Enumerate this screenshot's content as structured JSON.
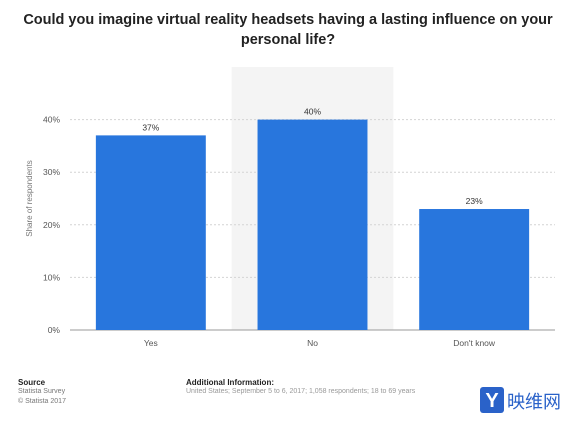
{
  "title": "Could you imagine virtual reality headsets having a lasting influence on your personal life?",
  "chart_data": {
    "type": "bar",
    "categories": [
      "Yes",
      "No",
      "Don't know"
    ],
    "values": [
      37,
      40,
      23
    ],
    "value_labels": [
      "37%",
      "40%",
      "23%"
    ],
    "ylabel": "Share of respondents",
    "ylim": [
      0,
      50
    ],
    "yticks": [
      0,
      10,
      20,
      30,
      40
    ],
    "ytick_labels": [
      "0%",
      "10%",
      "20%",
      "30%",
      "40%"
    ],
    "highlighted_category": "No",
    "grid": true,
    "bar_color": "#2876dd"
  },
  "footer": {
    "source_heading": "Source",
    "source_lines": [
      "Statista Survey",
      "© Statista 2017"
    ],
    "info_heading": "Additional Information:",
    "info_text": "United States; September 5 to 6, 2017; 1,058 respondents; 18 to 69 years"
  },
  "watermark": {
    "text": "映维网",
    "logo_letter": "Y"
  }
}
